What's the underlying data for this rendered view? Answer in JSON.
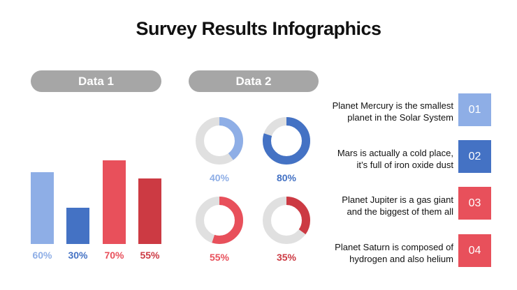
{
  "title": "Survey Results Infographics",
  "colors": {
    "light_blue": "#8eaee6",
    "dark_blue": "#4472c4",
    "light_red": "#e8505b",
    "dark_red": "#cc3a43",
    "track": "#e0e0e0",
    "pill": "#a6a6a6"
  },
  "chart_data": [
    {
      "type": "bar",
      "title": "Data 1",
      "categories": [
        "",
        "",
        "",
        ""
      ],
      "values": [
        60,
        30,
        70,
        55
      ],
      "labels": [
        "60%",
        "30%",
        "70%",
        "55%"
      ],
      "colors": [
        "#8eaee6",
        "#4472c4",
        "#e8505b",
        "#cc3a43"
      ],
      "ylim": [
        0,
        100
      ],
      "grid": false
    },
    {
      "type": "pie",
      "subtype": "donut",
      "title": "Data 2",
      "values": [
        40,
        80,
        55,
        35
      ],
      "labels": [
        "40%",
        "80%",
        "55%",
        "35%"
      ],
      "colors": [
        "#8eaee6",
        "#4472c4",
        "#e8505b",
        "#cc3a43"
      ]
    }
  ],
  "items": [
    {
      "text_line1": "Planet Mercury is the smallest",
      "text_line2": "planet in the Solar System",
      "number": "01",
      "color": "#8eaee6"
    },
    {
      "text_line1": "Mars is actually a cold place,",
      "text_line2": "it’s full of iron oxide dust",
      "number": "02",
      "color": "#4472c4"
    },
    {
      "text_line1": "Planet Jupiter is a gas giant",
      "text_line2": "and the biggest of them all",
      "number": "03",
      "color": "#e8505b"
    },
    {
      "text_line1": "Planet Saturn is composed of",
      "text_line2": "hydrogen and also helium",
      "number": "04",
      "color": "#e8505b"
    }
  ]
}
